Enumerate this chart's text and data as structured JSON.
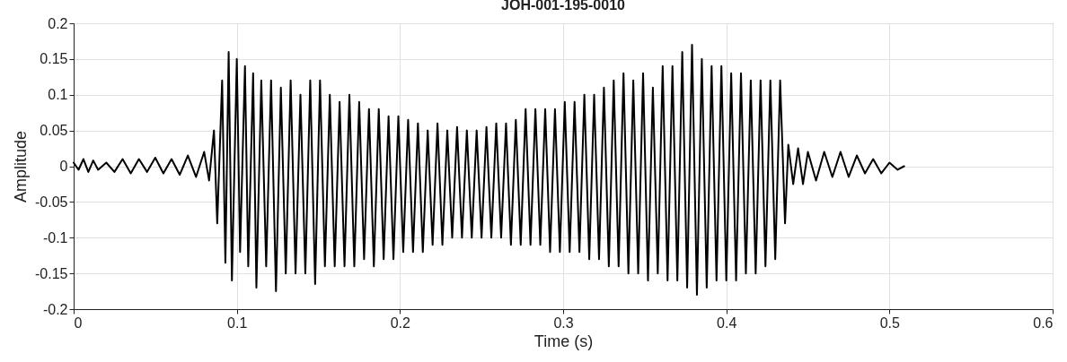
{
  "chart_data": {
    "type": "line",
    "title": "JOH-001-195-0010",
    "xlabel": "Time (s)",
    "ylabel": "Amplitude",
    "xlim": [
      0,
      0.6
    ],
    "xticks": [
      0,
      0.1,
      0.2,
      0.3,
      0.4,
      0.5,
      0.6
    ],
    "ylim": [
      -0.2,
      0.2
    ],
    "yticks": [
      -0.2,
      -0.15,
      -0.1,
      -0.05,
      0,
      0.05,
      0.1,
      0.15,
      0.2
    ],
    "grid": true,
    "line_style": "solid",
    "series": [
      {
        "color": "#000000",
        "x": [
          0,
          0.003,
          0.006,
          0.009,
          0.012,
          0.015,
          0.02,
          0.025,
          0.03,
          0.035,
          0.04,
          0.045,
          0.05,
          0.055,
          0.06,
          0.065,
          0.07,
          0.075,
          0.08,
          0.083,
          0.086,
          0.088,
          0.091,
          0.093,
          0.095,
          0.097,
          0.1,
          0.102,
          0.105,
          0.107,
          0.11,
          0.112,
          0.115,
          0.118,
          0.121,
          0.124,
          0.127,
          0.13,
          0.133,
          0.136,
          0.139,
          0.142,
          0.145,
          0.148,
          0.151,
          0.154,
          0.157,
          0.16,
          0.163,
          0.166,
          0.169,
          0.172,
          0.175,
          0.178,
          0.181,
          0.184,
          0.187,
          0.19,
          0.193,
          0.196,
          0.199,
          0.202,
          0.205,
          0.208,
          0.211,
          0.214,
          0.217,
          0.22,
          0.223,
          0.226,
          0.229,
          0.232,
          0.235,
          0.238,
          0.241,
          0.244,
          0.247,
          0.25,
          0.253,
          0.256,
          0.259,
          0.262,
          0.265,
          0.268,
          0.271,
          0.274,
          0.277,
          0.28,
          0.283,
          0.286,
          0.289,
          0.292,
          0.295,
          0.298,
          0.301,
          0.304,
          0.307,
          0.31,
          0.313,
          0.316,
          0.319,
          0.322,
          0.325,
          0.328,
          0.331,
          0.334,
          0.337,
          0.34,
          0.343,
          0.346,
          0.349,
          0.352,
          0.355,
          0.358,
          0.361,
          0.364,
          0.367,
          0.37,
          0.373,
          0.376,
          0.379,
          0.382,
          0.385,
          0.388,
          0.391,
          0.394,
          0.397,
          0.4,
          0.403,
          0.406,
          0.409,
          0.412,
          0.415,
          0.418,
          0.421,
          0.424,
          0.427,
          0.43,
          0.433,
          0.436,
          0.438,
          0.441,
          0.444,
          0.447,
          0.45,
          0.455,
          0.46,
          0.465,
          0.47,
          0.475,
          0.48,
          0.485,
          0.49,
          0.495,
          0.5,
          0.505,
          0.509
        ],
        "values": [
          0.005,
          -0.005,
          0.01,
          -0.008,
          0.008,
          -0.005,
          0.005,
          -0.008,
          0.01,
          -0.01,
          0.01,
          -0.008,
          0.012,
          -0.01,
          0.01,
          -0.012,
          0.015,
          -0.015,
          0.02,
          -0.02,
          0.05,
          -0.08,
          0.12,
          -0.135,
          0.16,
          -0.16,
          0.15,
          -0.12,
          0.14,
          -0.14,
          0.13,
          -0.17,
          0.12,
          -0.14,
          0.12,
          -0.175,
          0.11,
          -0.15,
          0.12,
          -0.15,
          0.1,
          -0.15,
          0.12,
          -0.165,
          0.12,
          -0.14,
          0.1,
          -0.14,
          0.09,
          -0.14,
          0.1,
          -0.14,
          0.09,
          -0.13,
          0.08,
          -0.14,
          0.08,
          -0.13,
          0.07,
          -0.13,
          0.07,
          -0.12,
          0.065,
          -0.12,
          0.06,
          -0.12,
          0.05,
          -0.11,
          0.06,
          -0.11,
          0.05,
          -0.1,
          0.055,
          -0.1,
          0.05,
          -0.1,
          0.05,
          -0.1,
          0.055,
          -0.1,
          0.06,
          -0.1,
          0.06,
          -0.11,
          0.065,
          -0.11,
          0.08,
          -0.11,
          0.08,
          -0.11,
          0.08,
          -0.12,
          0.08,
          -0.12,
          0.09,
          -0.12,
          0.09,
          -0.12,
          0.1,
          -0.13,
          0.1,
          -0.13,
          0.11,
          -0.14,
          0.12,
          -0.14,
          0.13,
          -0.15,
          0.12,
          -0.15,
          0.13,
          -0.16,
          0.11,
          -0.15,
          0.14,
          -0.16,
          0.14,
          -0.16,
          0.16,
          -0.17,
          0.17,
          -0.18,
          0.15,
          -0.17,
          0.14,
          -0.16,
          0.14,
          -0.16,
          0.13,
          -0.16,
          0.13,
          -0.15,
          0.12,
          -0.15,
          0.12,
          -0.14,
          0.12,
          -0.13,
          0.12,
          -0.08,
          0.03,
          -0.025,
          0.025,
          -0.025,
          0.02,
          -0.02,
          0.02,
          -0.015,
          0.02,
          -0.015,
          0.015,
          -0.01,
          0.01,
          -0.01,
          0.005,
          -0.005,
          0
        ]
      }
    ]
  }
}
